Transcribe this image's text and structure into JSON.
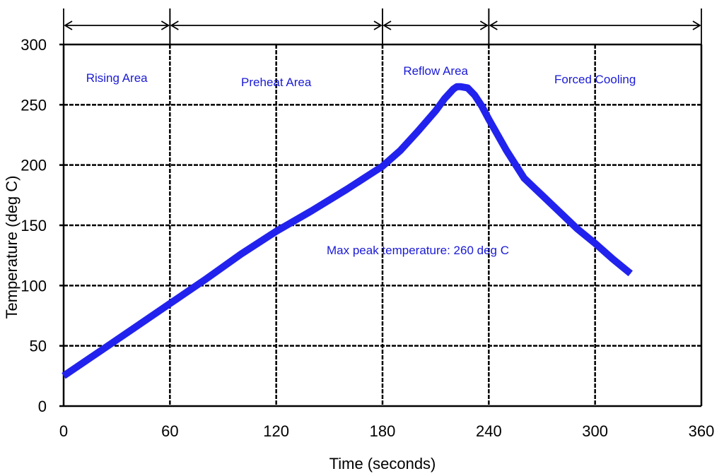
{
  "chart_data": {
    "type": "line",
    "xlabel": "Time (seconds)",
    "ylabel": "Temperature (deg C)",
    "xlim": [
      0,
      360
    ],
    "ylim": [
      0,
      300
    ],
    "xticks": [
      "0",
      "60",
      "120",
      "180",
      "240",
      "300",
      "360"
    ],
    "yticks": [
      "0",
      "50",
      "100",
      "150",
      "200",
      "250",
      "300"
    ],
    "grid": true,
    "line_color": "#2222ee",
    "zones": [
      {
        "label": "Rising Area",
        "start": 0,
        "end": 60
      },
      {
        "label": "Preheat Area",
        "start": 60,
        "end": 180
      },
      {
        "label": "Reflow Area",
        "start": 180,
        "end": 240
      },
      {
        "label": "Forced Cooling",
        "start": 240,
        "end": 360
      }
    ],
    "annotation": "Max peak temperature: 260 deg C",
    "series": [
      {
        "x": [
          0,
          20,
          40,
          60,
          80,
          100,
          120,
          140,
          160,
          180,
          190,
          200,
          210,
          215,
          220,
          222,
          224,
          228,
          232,
          236,
          240,
          250,
          260,
          270,
          280,
          290,
          300,
          310,
          320
        ],
        "y": [
          25,
          45,
          65,
          85,
          105,
          126,
          145,
          162,
          180,
          199,
          212,
          228,
          245,
          255,
          263,
          265,
          265,
          264,
          258,
          249,
          238,
          212,
          189,
          175,
          161,
          147,
          135,
          122,
          110
        ]
      }
    ]
  }
}
